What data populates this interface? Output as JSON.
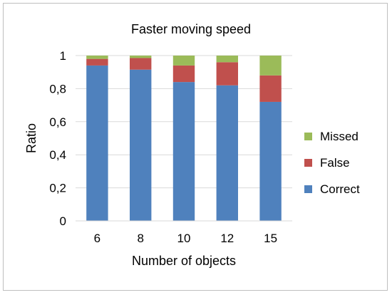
{
  "chart_data": {
    "type": "bar",
    "stacked": true,
    "title": "Faster moving speed",
    "xlabel": "Number of objects",
    "ylabel": "Ratio",
    "categories": [
      "6",
      "8",
      "10",
      "12",
      "15"
    ],
    "ylim": [
      0,
      1
    ],
    "yticks": [
      0,
      0.2,
      0.4,
      0.6,
      0.8,
      1
    ],
    "ytick_labels": [
      "0",
      "0,2",
      "0,4",
      "0,6",
      "0,8",
      "1"
    ],
    "grid": true,
    "legend_position": "right",
    "series": [
      {
        "name": "Correct",
        "color": "#4f81bd",
        "values": [
          0.94,
          0.915,
          0.84,
          0.82,
          0.72
        ]
      },
      {
        "name": "False",
        "color": "#c0504d",
        "values": [
          0.04,
          0.07,
          0.1,
          0.14,
          0.16
        ]
      },
      {
        "name": "Missed",
        "color": "#9bbb59",
        "values": [
          0.02,
          0.015,
          0.06,
          0.04,
          0.12
        ]
      }
    ],
    "legend_order": [
      "Missed",
      "False",
      "Correct"
    ]
  }
}
